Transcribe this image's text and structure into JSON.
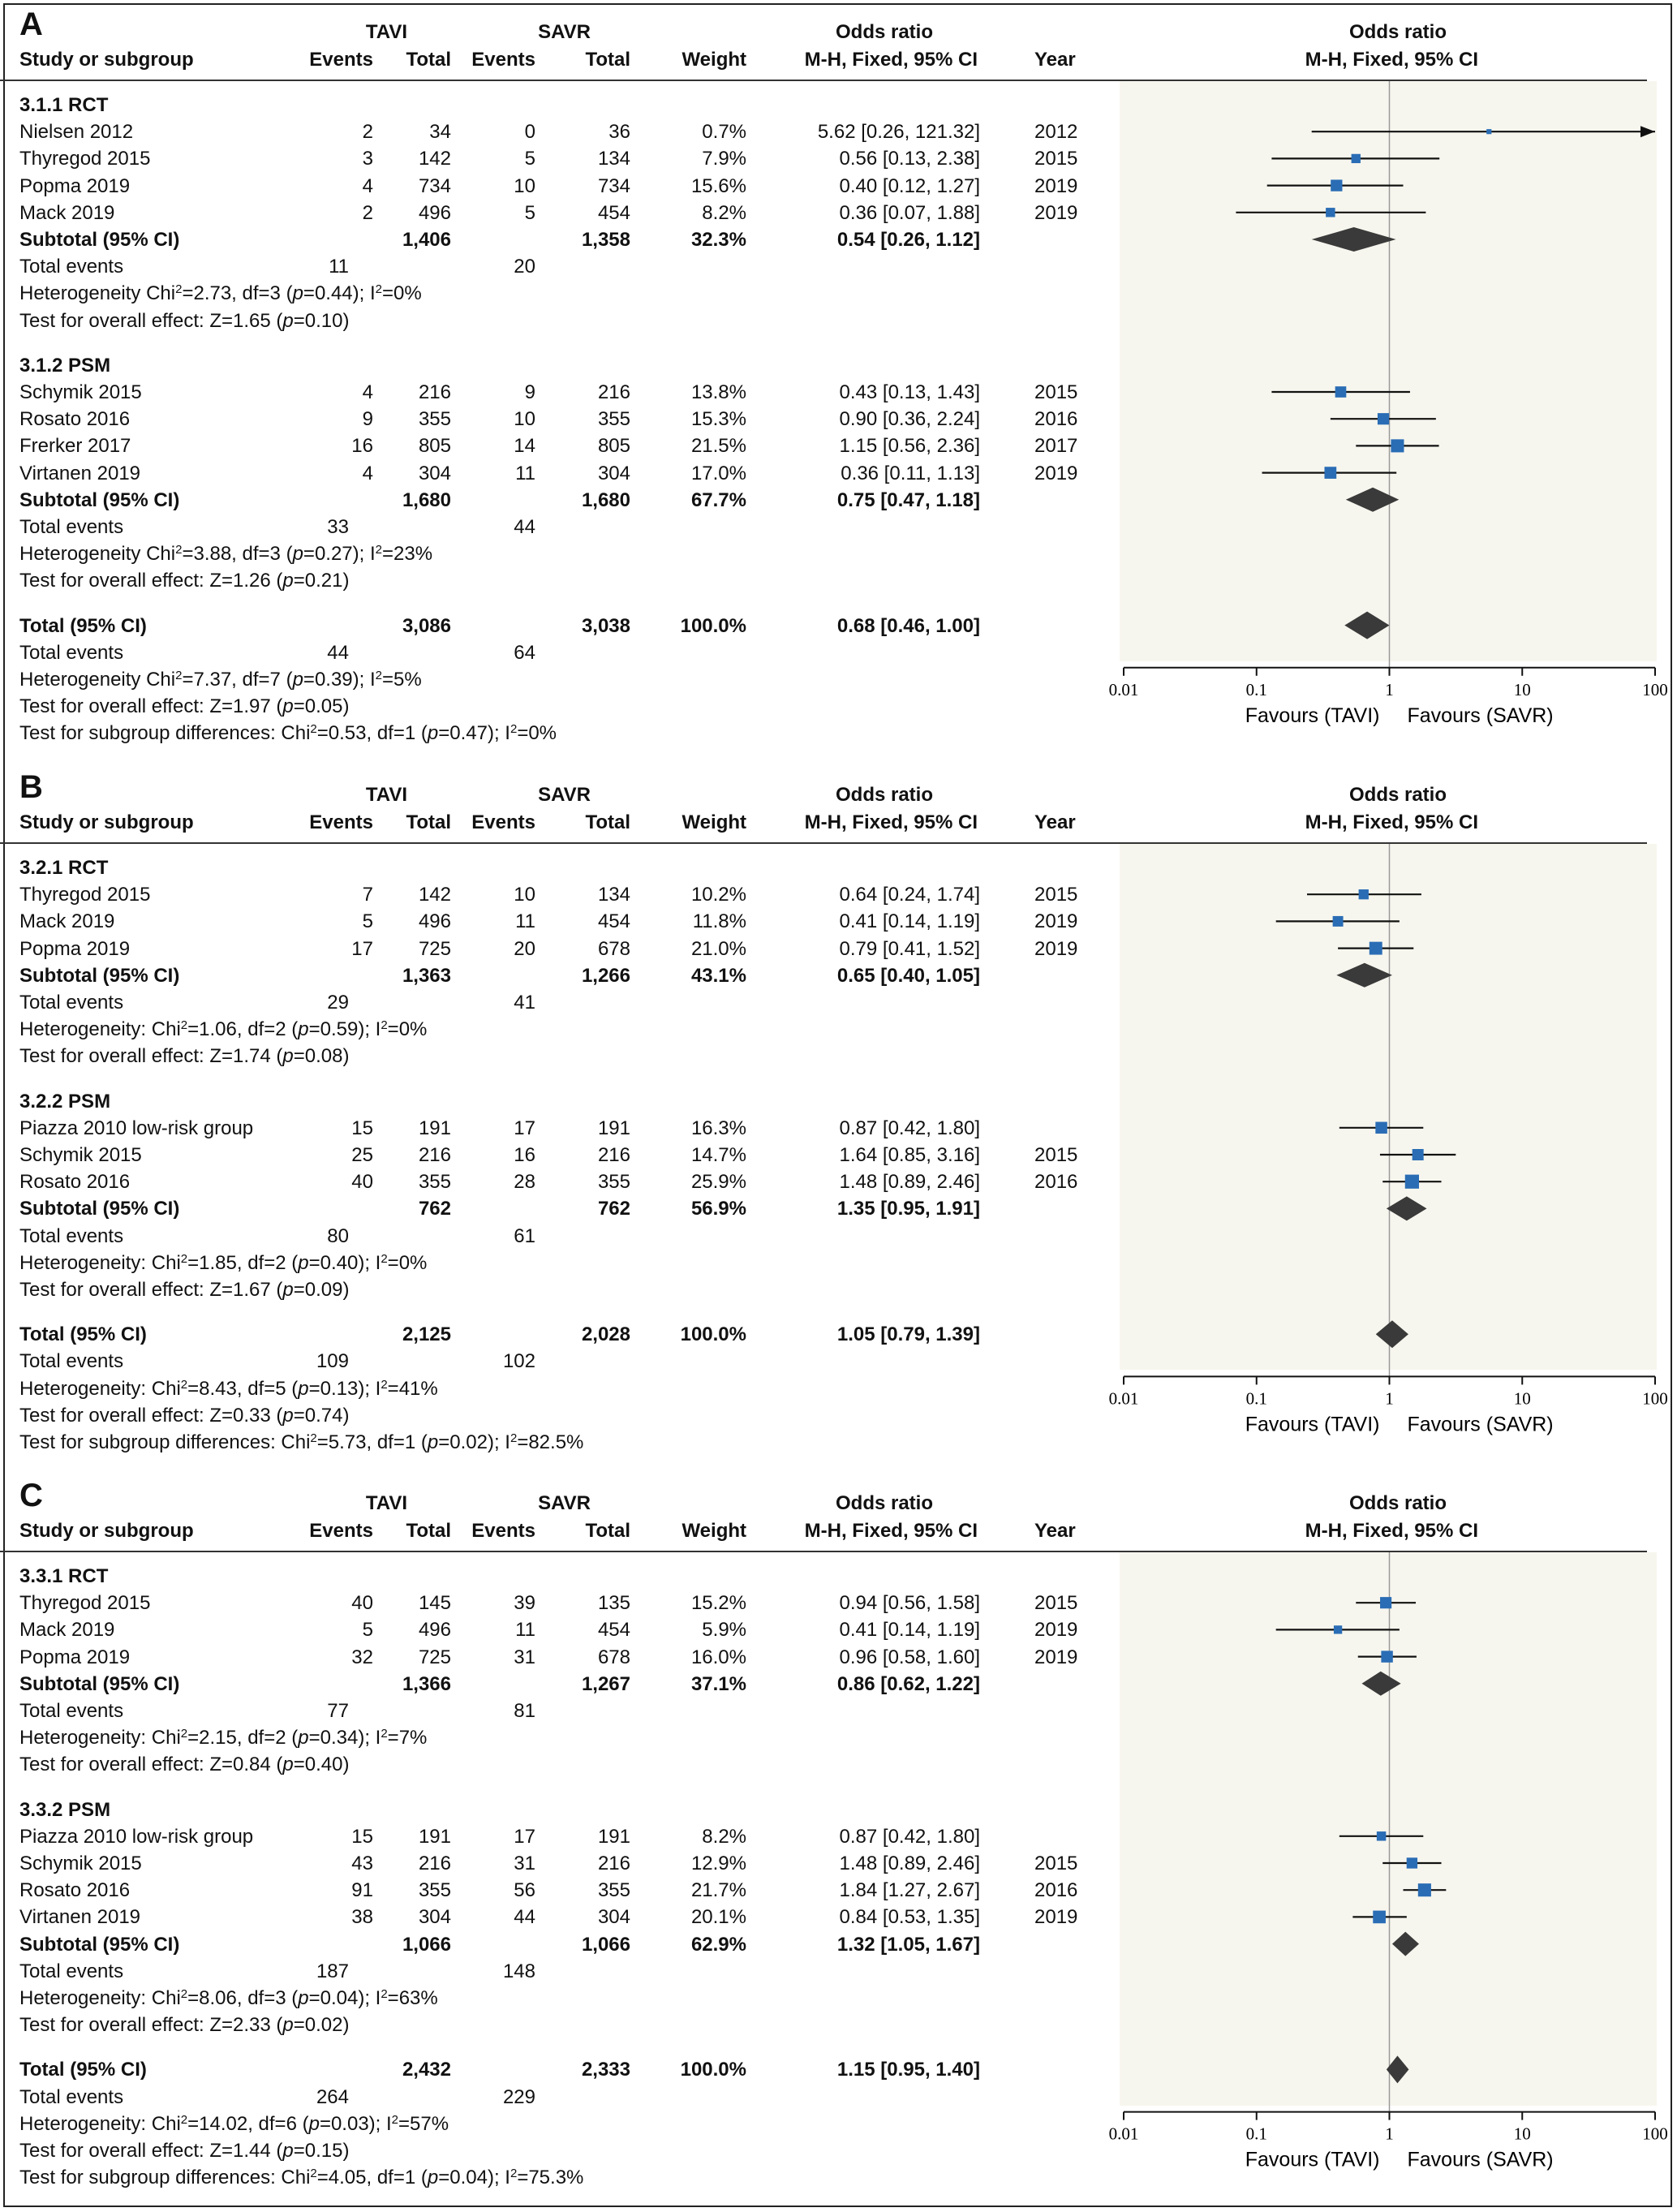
{
  "columns": {
    "study": "Study or subgroup",
    "tavi": "TAVI",
    "savr": "SAVR",
    "events": "Events",
    "total": "Total",
    "weight": "Weight",
    "or_title": "Odds ratio",
    "or_method": "M-H, Fixed, 95% CI",
    "year": "Year"
  },
  "axis": {
    "ticks": [
      "0.01",
      "0.1",
      "1",
      "10",
      "100"
    ],
    "favours_left": "Favours (TAVI)",
    "favours_right": "Favours (SAVR)"
  },
  "colors": {
    "square": "#2a6db5",
    "diamond": "#3a3a3a",
    "plot_bg": "#f7f6ee"
  },
  "chart_data": [
    {
      "type": "forest",
      "panel": "A",
      "x_scale": "log",
      "xlim": [
        0.01,
        100
      ],
      "groups": [
        {
          "title": "3.1.1 RCT",
          "studies": [
            {
              "name": "Nielsen 2012",
              "e1": "2",
              "n1": "34",
              "e2": "0",
              "n2": "36",
              "weight": "0.7%",
              "ci": "5.62 [0.26, 121.32]",
              "year": "2012",
              "or": 5.62,
              "lo": 0.26,
              "hi": 121.32
            },
            {
              "name": "Thyregod 2015",
              "e1": "3",
              "n1": "142",
              "e2": "5",
              "n2": "134",
              "weight": "7.9%",
              "ci": "0.56 [0.13, 2.38]",
              "year": "2015",
              "or": 0.56,
              "lo": 0.13,
              "hi": 2.38
            },
            {
              "name": "Popma 2019",
              "e1": "4",
              "n1": "734",
              "e2": "10",
              "n2": "734",
              "weight": "15.6%",
              "ci": "0.40 [0.12, 1.27]",
              "year": "2019",
              "or": 0.4,
              "lo": 0.12,
              "hi": 1.27
            },
            {
              "name": "Mack 2019",
              "e1": "2",
              "n1": "496",
              "e2": "5",
              "n2": "454",
              "weight": "8.2%",
              "ci": "0.36 [0.07, 1.88]",
              "year": "2019",
              "or": 0.36,
              "lo": 0.07,
              "hi": 1.88
            }
          ],
          "subtotal": {
            "label": "Subtotal (95% CI)",
            "n1": "1,406",
            "n2": "1,358",
            "weight": "32.3%",
            "ci": "0.54 [0.26, 1.12]",
            "or": 0.54,
            "lo": 0.26,
            "hi": 1.12
          },
          "total_events": {
            "label": "Total events",
            "e1": "11",
            "e2": "20"
          },
          "heterogeneity": {
            "prefix": "Heterogeneity Chi",
            "sup": "2",
            "mid": "=2.73, df=3 (",
            "p": "p",
            "rest": "=0.44); I",
            "sup2": "2",
            "end": "=0%"
          },
          "overall": {
            "prefix": "Test for overall effect: Z=1.65 (",
            "p": "p",
            "rest": "=0.10)"
          }
        },
        {
          "title": "3.1.2 PSM",
          "studies": [
            {
              "name": "Schymik 2015",
              "e1": "4",
              "n1": "216",
              "e2": "9",
              "n2": "216",
              "weight": "13.8%",
              "ci": "0.43 [0.13, 1.43]",
              "year": "2015",
              "or": 0.43,
              "lo": 0.13,
              "hi": 1.43
            },
            {
              "name": "Rosato 2016",
              "e1": "9",
              "n1": "355",
              "e2": "10",
              "n2": "355",
              "weight": "15.3%",
              "ci": "0.90 [0.36, 2.24]",
              "year": "2016",
              "or": 0.9,
              "lo": 0.36,
              "hi": 2.24
            },
            {
              "name": "Frerker 2017",
              "e1": "16",
              "n1": "805",
              "e2": "14",
              "n2": "805",
              "weight": "21.5%",
              "ci": "1.15 [0.56, 2.36]",
              "year": "2017",
              "or": 1.15,
              "lo": 0.56,
              "hi": 2.36
            },
            {
              "name": "Virtanen 2019",
              "e1": "4",
              "n1": "304",
              "e2": "11",
              "n2": "304",
              "weight": "17.0%",
              "ci": "0.36 [0.11, 1.13]",
              "year": "2019",
              "or": 0.36,
              "lo": 0.11,
              "hi": 1.13
            }
          ],
          "subtotal": {
            "label": "Subtotal (95% CI)",
            "n1": "1,680",
            "n2": "1,680",
            "weight": "67.7%",
            "ci": "0.75 [0.47, 1.18]",
            "or": 0.75,
            "lo": 0.47,
            "hi": 1.18
          },
          "total_events": {
            "label": "Total events",
            "e1": "33",
            "e2": "44"
          },
          "heterogeneity": {
            "prefix": "Heterogeneity Chi",
            "sup": "2",
            "mid": "=3.88, df=3 (",
            "p": "p",
            "rest": "=0.27); I",
            "sup2": "2",
            "end": "=23%"
          },
          "overall": {
            "prefix": "Test for overall effect: Z=1.26 (",
            "p": "p",
            "rest": "=0.21)"
          }
        }
      ],
      "total": {
        "label": "Total (95% CI)",
        "n1": "3,086",
        "n2": "3,038",
        "weight": "100.0%",
        "ci": "0.68 [0.46, 1.00]",
        "or": 0.68,
        "lo": 0.46,
        "hi": 1.0
      },
      "total_events": {
        "label": "Total events",
        "e1": "44",
        "e2": "64"
      },
      "heterogeneity": {
        "prefix": "Heterogeneity Chi",
        "sup": "2",
        "mid": "=7.37, df=7 (",
        "p": "p",
        "rest": "=0.39); I",
        "sup2": "2",
        "end": "=5%"
      },
      "overall": {
        "prefix": "Test for overall effect: Z=1.97 (",
        "p": "p",
        "rest": "=0.05)"
      },
      "subgroup_diff": {
        "prefix": "Test for subgroup differences: Chi",
        "sup": "2",
        "mid": "=0.53, df=1 (",
        "p": "p",
        "rest": "=0.47); I",
        "sup2": "2",
        "end": "=0%"
      }
    },
    {
      "type": "forest",
      "panel": "B",
      "x_scale": "log",
      "xlim": [
        0.01,
        100
      ],
      "groups": [
        {
          "title": "3.2.1 RCT",
          "studies": [
            {
              "name": "Thyregod 2015",
              "e1": "7",
              "n1": "142",
              "e2": "10",
              "n2": "134",
              "weight": "10.2%",
              "ci": "0.64 [0.24, 1.74]",
              "year": "2015",
              "or": 0.64,
              "lo": 0.24,
              "hi": 1.74
            },
            {
              "name": "Mack 2019",
              "e1": "5",
              "n1": "496",
              "e2": "11",
              "n2": "454",
              "weight": "11.8%",
              "ci": "0.41 [0.14, 1.19]",
              "year": "2019",
              "or": 0.41,
              "lo": 0.14,
              "hi": 1.19
            },
            {
              "name": "Popma 2019",
              "e1": "17",
              "n1": "725",
              "e2": "20",
              "n2": "678",
              "weight": "21.0%",
              "ci": "0.79 [0.41, 1.52]",
              "year": "2019",
              "or": 0.79,
              "lo": 0.41,
              "hi": 1.52
            }
          ],
          "subtotal": {
            "label": "Subtotal (95% CI)",
            "n1": "1,363",
            "n2": "1,266",
            "weight": "43.1%",
            "ci": "0.65 [0.40, 1.05]",
            "or": 0.65,
            "lo": 0.4,
            "hi": 1.05
          },
          "total_events": {
            "label": "Total events",
            "e1": "29",
            "e2": "41"
          },
          "heterogeneity": {
            "prefix": "Heterogeneity: Chi",
            "sup": "2",
            "mid": "=1.06, df=2 (",
            "p": "p",
            "rest": "=0.59); I",
            "sup2": "2",
            "end": "=0%"
          },
          "overall": {
            "prefix": "Test for overall effect: Z=1.74 (",
            "p": "p",
            "rest": "=0.08)"
          }
        },
        {
          "title": "3.2.2 PSM",
          "studies": [
            {
              "name": "Piazza 2010 low-risk group",
              "e1": "15",
              "n1": "191",
              "e2": "17",
              "n2": "191",
              "weight": "16.3%",
              "ci": "0.87 [0.42, 1.80]",
              "year": "",
              "or": 0.87,
              "lo": 0.42,
              "hi": 1.8
            },
            {
              "name": "Schymik 2015",
              "e1": "25",
              "n1": "216",
              "e2": "16",
              "n2": "216",
              "weight": "14.7%",
              "ci": "1.64 [0.85, 3.16]",
              "year": "2015",
              "or": 1.64,
              "lo": 0.85,
              "hi": 3.16
            },
            {
              "name": "Rosato 2016",
              "e1": "40",
              "n1": "355",
              "e2": "28",
              "n2": "355",
              "weight": "25.9%",
              "ci": "1.48 [0.89, 2.46]",
              "year": "2016",
              "or": 1.48,
              "lo": 0.89,
              "hi": 2.46
            }
          ],
          "subtotal": {
            "label": "Subtotal (95% CI)",
            "n1": "762",
            "n2": "762",
            "weight": "56.9%",
            "ci": "1.35 [0.95, 1.91]",
            "or": 1.35,
            "lo": 0.95,
            "hi": 1.91
          },
          "total_events": {
            "label": "Total events",
            "e1": "80",
            "e2": "61"
          },
          "heterogeneity": {
            "prefix": "Heterogeneity: Chi",
            "sup": "2",
            "mid": "=1.85, df=2 (",
            "p": "p",
            "rest": "=0.40); I",
            "sup2": "2",
            "end": "=0%"
          },
          "overall": {
            "prefix": "Test for overall effect: Z=1.67 (",
            "p": "p",
            "rest": "=0.09)"
          }
        }
      ],
      "total": {
        "label": "Total (95% CI)",
        "n1": "2,125",
        "n2": "2,028",
        "weight": "100.0%",
        "ci": "1.05 [0.79, 1.39]",
        "or": 1.05,
        "lo": 0.79,
        "hi": 1.39
      },
      "total_events": {
        "label": "Total events",
        "e1": "109",
        "e2": "102"
      },
      "heterogeneity": {
        "prefix": "Heterogeneity: Chi",
        "sup": "2",
        "mid": "=8.43, df=5 (",
        "p": "p",
        "rest": "=0.13); I",
        "sup2": "2",
        "end": "=41%"
      },
      "overall": {
        "prefix": "Test for overall effect: Z=0.33 (",
        "p": "p",
        "rest": "=0.74)"
      },
      "subgroup_diff": {
        "prefix": "Test for subgroup differences: Chi",
        "sup": "2",
        "mid": "=5.73, df=1 (",
        "p": "p",
        "rest": "=0.02); I",
        "sup2": "2",
        "end": "=82.5%"
      }
    },
    {
      "type": "forest",
      "panel": "C",
      "x_scale": "log",
      "xlim": [
        0.01,
        100
      ],
      "groups": [
        {
          "title": "3.3.1 RCT",
          "studies": [
            {
              "name": "Thyregod 2015",
              "e1": "40",
              "n1": "145",
              "e2": "39",
              "n2": "135",
              "weight": "15.2%",
              "ci": "0.94 [0.56, 1.58]",
              "year": "2015",
              "or": 0.94,
              "lo": 0.56,
              "hi": 1.58
            },
            {
              "name": "Mack 2019",
              "e1": "5",
              "n1": "496",
              "e2": "11",
              "n2": "454",
              "weight": "5.9%",
              "ci": "0.41 [0.14, 1.19]",
              "year": "2019",
              "or": 0.41,
              "lo": 0.14,
              "hi": 1.19
            },
            {
              "name": "Popma 2019",
              "e1": "32",
              "n1": "725",
              "e2": "31",
              "n2": "678",
              "weight": "16.0%",
              "ci": "0.96 [0.58, 1.60]",
              "year": "2019",
              "or": 0.96,
              "lo": 0.58,
              "hi": 1.6
            }
          ],
          "subtotal": {
            "label": "Subtotal (95% CI)",
            "n1": "1,366",
            "n2": "1,267",
            "weight": "37.1%",
            "ci": "0.86 [0.62, 1.22]",
            "or": 0.86,
            "lo": 0.62,
            "hi": 1.22
          },
          "total_events": {
            "label": "Total events",
            "e1": "77",
            "e2": "81"
          },
          "heterogeneity": {
            "prefix": "Heterogeneity: Chi",
            "sup": "2",
            "mid": "=2.15, df=2 (",
            "p": "p",
            "rest": "=0.34); I",
            "sup2": "2",
            "end": "=7%"
          },
          "overall": {
            "prefix": "Test for overall effect: Z=0.84 (",
            "p": "p",
            "rest": "=0.40)"
          }
        },
        {
          "title": "3.3.2 PSM",
          "studies": [
            {
              "name": "Piazza 2010 low-risk group",
              "e1": "15",
              "n1": "191",
              "e2": "17",
              "n2": "191",
              "weight": "8.2%",
              "ci": "0.87 [0.42, 1.80]",
              "year": "",
              "or": 0.87,
              "lo": 0.42,
              "hi": 1.8
            },
            {
              "name": "Schymik 2015",
              "e1": "43",
              "n1": "216",
              "e2": "31",
              "n2": "216",
              "weight": "12.9%",
              "ci": "1.48 [0.89, 2.46]",
              "year": "2015",
              "or": 1.48,
              "lo": 0.89,
              "hi": 2.46
            },
            {
              "name": "Rosato 2016",
              "e1": "91",
              "n1": "355",
              "e2": "56",
              "n2": "355",
              "weight": "21.7%",
              "ci": "1.84 [1.27, 2.67]",
              "year": "2016",
              "or": 1.84,
              "lo": 1.27,
              "hi": 2.67
            },
            {
              "name": "Virtanen 2019",
              "e1": "38",
              "n1": "304",
              "e2": "44",
              "n2": "304",
              "weight": "20.1%",
              "ci": "0.84 [0.53, 1.35]",
              "year": "2019",
              "or": 0.84,
              "lo": 0.53,
              "hi": 1.35
            }
          ],
          "subtotal": {
            "label": "Subtotal (95% CI)",
            "n1": "1,066",
            "n2": "1,066",
            "weight": "62.9%",
            "ci": "1.32 [1.05, 1.67]",
            "or": 1.32,
            "lo": 1.05,
            "hi": 1.67
          },
          "total_events": {
            "label": "Total events",
            "e1": "187",
            "e2": "148"
          },
          "heterogeneity": {
            "prefix": "Heterogeneity: Chi",
            "sup": "2",
            "mid": "=8.06, df=3 (",
            "p": "p",
            "rest": "=0.04); I",
            "sup2": "2",
            "end": "=63%"
          },
          "overall": {
            "prefix": "Test for overall effect: Z=2.33 (",
            "p": "p",
            "rest": "=0.02)"
          }
        }
      ],
      "total": {
        "label": "Total (95% CI)",
        "n1": "2,432",
        "n2": "2,333",
        "weight": "100.0%",
        "ci": "1.15 [0.95, 1.40]",
        "or": 1.15,
        "lo": 0.95,
        "hi": 1.4
      },
      "total_events": {
        "label": "Total events",
        "e1": "264",
        "e2": "229"
      },
      "heterogeneity": {
        "prefix": "Heterogeneity: Chi",
        "sup": "2",
        "mid": "=14.02, df=6 (",
        "p": "p",
        "rest": "=0.03); I",
        "sup2": "2",
        "end": "=57%"
      },
      "overall": {
        "prefix": "Test for overall effect: Z=1.44 (",
        "p": "p",
        "rest": "=0.15)"
      },
      "subgroup_diff": {
        "prefix": "Test for subgroup differences: Chi",
        "sup": "2",
        "mid": "=4.05, df=1 (",
        "p": "p",
        "rest": "=0.04); I",
        "sup2": "2",
        "end": "=75.3%"
      }
    }
  ]
}
